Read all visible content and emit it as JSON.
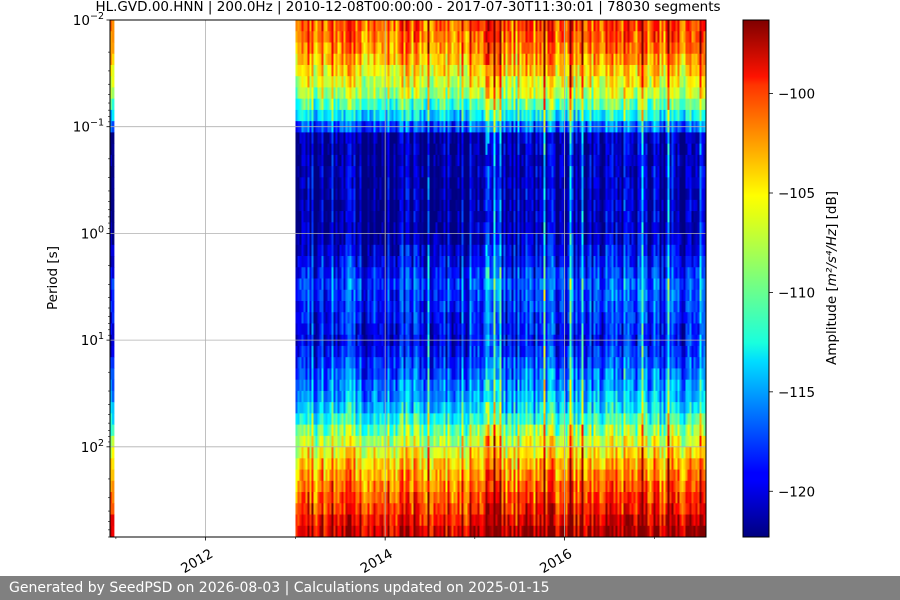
{
  "chart_data": {
    "type": "heatmap",
    "title": "HL.GVD.00.HNN | 200.0Hz | 2010-12-08T00:00:00 - 2017-07-30T11:30:01 | 78030 segments",
    "xlabel": "",
    "ylabel": "Period [s]",
    "y_scale": "log",
    "y_inverted": true,
    "xlim": [
      "2010-12-08",
      "2017-07-30"
    ],
    "ylim": [
      0.01,
      700
    ],
    "x_ticks": [
      {
        "label": "2012",
        "value": "2012-01-01"
      },
      {
        "label": "2014",
        "value": "2014-01-01"
      },
      {
        "label": "2016",
        "value": "2016-01-01"
      }
    ],
    "y_ticks": [
      {
        "label": "10",
        "exp": "−2",
        "value": 0.01
      },
      {
        "label": "10",
        "exp": "−1",
        "value": 0.1
      },
      {
        "label": "10",
        "exp": "0",
        "value": 1
      },
      {
        "label": "10",
        "exp": "1",
        "value": 10
      },
      {
        "label": "10",
        "exp": "2",
        "value": 100
      }
    ],
    "grid": true,
    "data_gap": [
      "2010-12-20",
      "2013-01-01"
    ],
    "colormap": "jet",
    "colorbar": {
      "label_prefix": "Amplitude [",
      "label_unit": "m²/s⁴/Hz",
      "label_suffix": "] [dB]",
      "min": -122.3,
      "max": -96.3,
      "ticks": [
        -100,
        -105,
        -110,
        -115,
        -120
      ],
      "tick_labels": [
        "−100",
        "−105",
        "−110",
        "−115",
        "−120"
      ]
    },
    "amplitude_profile_db": [
      {
        "period": 0.01,
        "db": -101
      },
      {
        "period": 0.02,
        "db": -103
      },
      {
        "period": 0.05,
        "db": -108
      },
      {
        "period": 0.09,
        "db": -114
      },
      {
        "period": 0.12,
        "db": -121
      },
      {
        "period": 1.0,
        "db": -121
      },
      {
        "period": 3.0,
        "db": -117
      },
      {
        "period": 10,
        "db": -119
      },
      {
        "period": 40,
        "db": -114
      },
      {
        "period": 80,
        "db": -108
      },
      {
        "period": 150,
        "db": -104
      },
      {
        "period": 400,
        "db": -100
      },
      {
        "period": 700,
        "db": -97
      }
    ]
  },
  "footer": {
    "text": "Generated by SeedPSD on 2026-08-03 | Calculations updated on 2025-01-15"
  }
}
